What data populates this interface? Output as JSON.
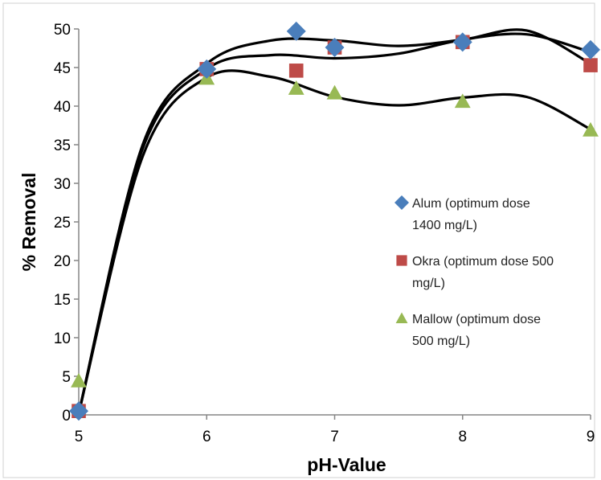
{
  "chart_data": {
    "type": "scatter",
    "xlabel": "pH-Value",
    "ylabel": "% Removal",
    "xlim": [
      5,
      9
    ],
    "ylim": [
      0,
      50
    ],
    "xticks": [
      "5",
      "6",
      "7",
      "8",
      "9"
    ],
    "yticks": [
      "0",
      "5",
      "10",
      "15",
      "20",
      "25",
      "30",
      "35",
      "40",
      "45",
      "50"
    ],
    "grid": false,
    "legend_position": "right",
    "series": [
      {
        "name": "Alum (optimum dose 1400 mg/L)",
        "legend_lines": [
          "Alum (optimum dose",
          "1400 mg/L)"
        ],
        "marker": "diamond",
        "color": "#4a7ebb",
        "x": [
          5,
          6,
          6.7,
          7,
          8,
          9
        ],
        "y": [
          0.5,
          44.8,
          49.7,
          47.6,
          48.3,
          47.3
        ],
        "trend_x": [
          5,
          5.5,
          6,
          6.5,
          7,
          7.5,
          8,
          8.5,
          9
        ],
        "trend_y": [
          0.2,
          35,
          45.5,
          48.5,
          48.5,
          47.8,
          48.6,
          49.8,
          45.5
        ]
      },
      {
        "name": "Okra (optimum dose 500 mg/L)",
        "legend_lines": [
          "Okra (optimum dose 500",
          "mg/L)"
        ],
        "marker": "square",
        "color": "#be4b48",
        "x": [
          5,
          6,
          6.7,
          7,
          8,
          9
        ],
        "y": [
          0.5,
          44.8,
          44.6,
          47.6,
          48.3,
          45.3
        ],
        "trend_x": [
          5,
          5.5,
          6,
          6.5,
          7,
          7.5,
          8,
          8.5,
          9
        ],
        "trend_y": [
          0.2,
          34.5,
          44.8,
          46.6,
          46.2,
          46.8,
          48.6,
          49.3,
          47
        ]
      },
      {
        "name": "Mallow (optimum dose 500 mg/L)",
        "legend_lines": [
          "Mallow (optimum dose",
          "500 mg/L)"
        ],
        "marker": "triangle",
        "color": "#98b954",
        "x": [
          5,
          6,
          6.7,
          7,
          8,
          9
        ],
        "y": [
          4.4,
          43.6,
          42.3,
          41.7,
          40.6,
          36.9
        ],
        "trend_x": [
          5,
          5.5,
          6,
          6.5,
          7,
          7.5,
          8,
          8.5,
          9
        ],
        "trend_y": [
          0.2,
          33.5,
          43.7,
          43.8,
          41.2,
          40.1,
          41.1,
          41.2,
          37
        ]
      }
    ]
  }
}
